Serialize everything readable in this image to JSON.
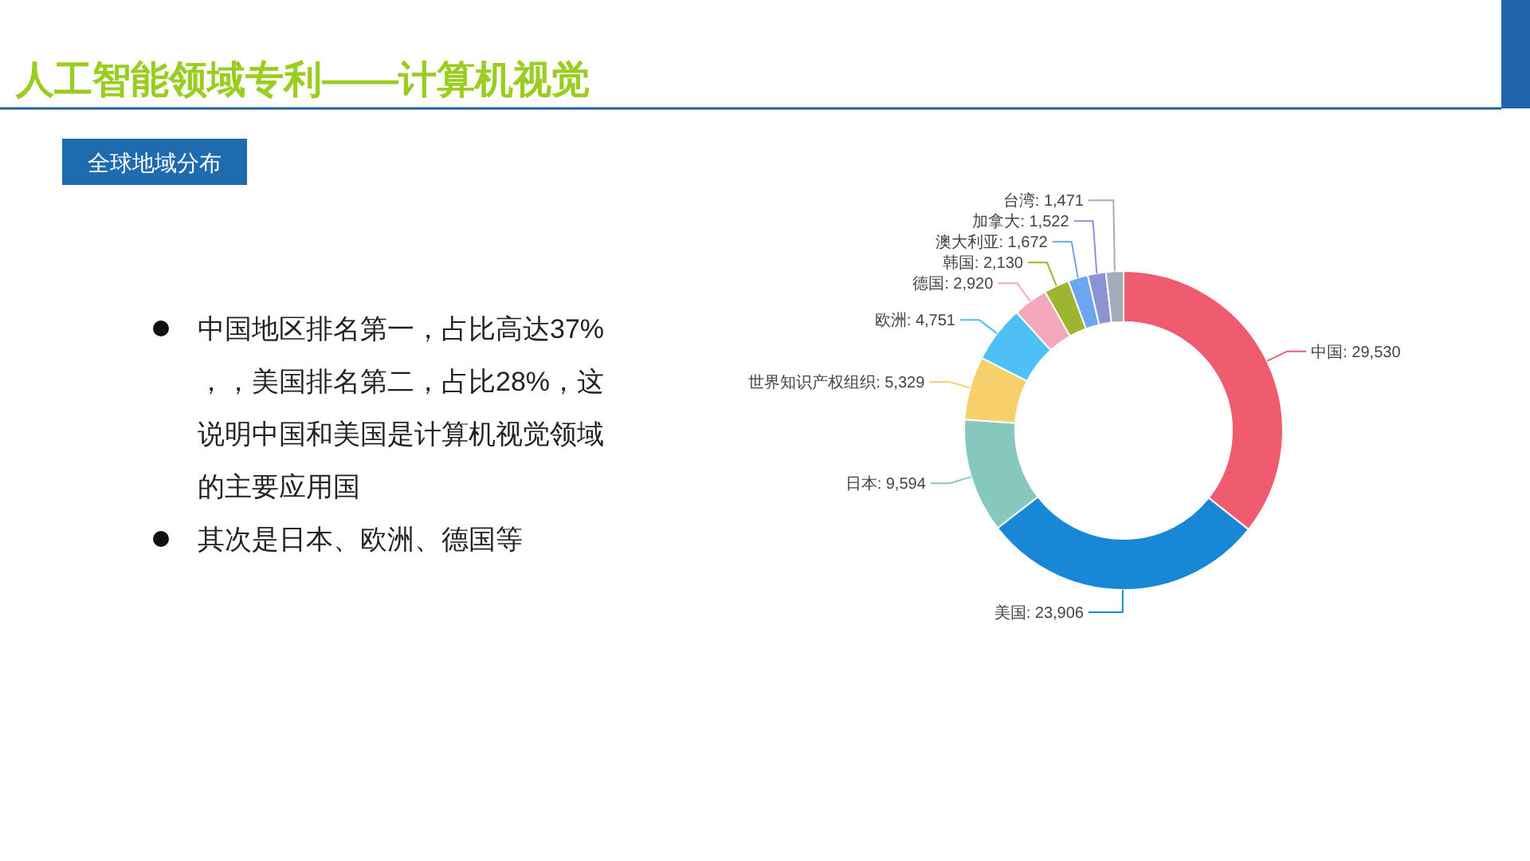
{
  "chart_data": {
    "type": "donut",
    "title": "人工智能领域专利——计算机视觉",
    "subtitle": "全球地域分布",
    "annotations": [
      "中国地区排名第一，占比高达37%，，美国排名第二，占比28%，这说明中国和美国是计算机视觉领域的主要应用国",
      "其次是日本、欧洲、德国等"
    ],
    "categories": [
      "中国",
      "美国",
      "日本",
      "世界知识产权组织",
      "欧洲",
      "德国",
      "韩国",
      "澳大利亚",
      "加拿大",
      "台湾"
    ],
    "values": [
      29530,
      23906,
      9594,
      5329,
      4751,
      2920,
      2130,
      1672,
      1522,
      1471
    ],
    "value_labels": [
      "29,530",
      "23,906",
      "9,594",
      "5,329",
      "4,751",
      "2,920",
      "2,130",
      "1,672",
      "1,522",
      "1,471"
    ],
    "colors": [
      "#ef5b6f",
      "#1787d6",
      "#86c8bd",
      "#f7cf6b",
      "#4ec0f5",
      "#f4a8ba",
      "#9db531",
      "#6ba6ee",
      "#8c93d1",
      "#a3adba"
    ]
  }
}
